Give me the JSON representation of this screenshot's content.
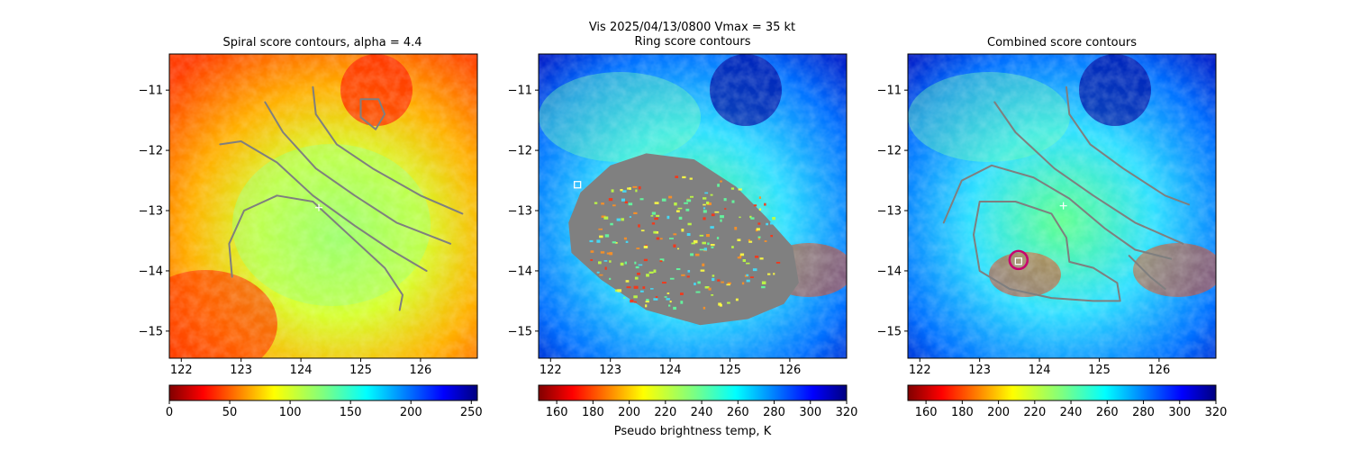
{
  "figure": {
    "suptitle_line1": "Vis  2025/04/13/0800    Vmax = 35 kt",
    "suptitle_line2": "Ring score contours",
    "colorbar_label": "Pseudo brightness temp, K"
  },
  "colors": {
    "axis": "#000000",
    "contour": "#7f7f7f",
    "ring_mask": "#808080",
    "center_marker": "#ffffff",
    "circle": "#c8006e"
  },
  "chart_data": [
    {
      "type": "heatmap",
      "title": "Spiral score contours, alpha =  4.4",
      "xlabel": "",
      "ylabel": "",
      "xlim": [
        121.8,
        126.95
      ],
      "ylim": [
        -15.45,
        -10.4
      ],
      "xticks": [
        122,
        123,
        124,
        125,
        126
      ],
      "yticks": [
        -11,
        -12,
        -13,
        -14,
        -15
      ],
      "xtick_labels": [
        "122",
        "123",
        "124",
        "125",
        "126"
      ],
      "ytick_labels": [
        "−11",
        "−12",
        "−13",
        "−14",
        "−15"
      ],
      "colormap": "jet_r",
      "colorbar": {
        "min": 0,
        "max": 255,
        "ticks": [
          0,
          50,
          100,
          150,
          200,
          250
        ],
        "tick_labels": [
          "0",
          "50",
          "100",
          "150",
          "200",
          "250"
        ]
      },
      "center_marker": [
        124.3,
        -12.95
      ],
      "contours": [
        [
          [
            124.2,
            -10.95
          ],
          [
            124.25,
            -11.4
          ],
          [
            124.6,
            -11.9
          ],
          [
            125.2,
            -12.3
          ],
          [
            126.0,
            -12.75
          ],
          [
            126.7,
            -13.05
          ]
        ],
        [
          [
            123.4,
            -11.2
          ],
          [
            123.7,
            -11.7
          ],
          [
            124.25,
            -12.3
          ],
          [
            124.9,
            -12.75
          ],
          [
            125.6,
            -13.2
          ],
          [
            126.5,
            -13.55
          ]
        ],
        [
          [
            122.65,
            -11.9
          ],
          [
            123.0,
            -11.85
          ],
          [
            123.6,
            -12.2
          ],
          [
            124.2,
            -12.75
          ],
          [
            124.9,
            -13.25
          ],
          [
            125.5,
            -13.65
          ],
          [
            126.1,
            -14.0
          ]
        ],
        [
          [
            122.85,
            -14.1
          ],
          [
            122.8,
            -13.55
          ],
          [
            123.05,
            -13.0
          ],
          [
            123.6,
            -12.75
          ],
          [
            124.2,
            -12.85
          ],
          [
            124.8,
            -13.4
          ],
          [
            125.4,
            -13.95
          ],
          [
            125.7,
            -14.4
          ],
          [
            125.65,
            -14.65
          ]
        ],
        [
          [
            125.0,
            -11.15
          ],
          [
            125.3,
            -11.15
          ],
          [
            125.4,
            -11.4
          ],
          [
            125.25,
            -11.65
          ],
          [
            125.0,
            -11.45
          ],
          [
            125.0,
            -11.15
          ]
        ]
      ]
    },
    {
      "type": "heatmap",
      "title": "Ring score contours",
      "xlabel": "",
      "ylabel": "",
      "xlim": [
        121.8,
        126.95
      ],
      "ylim": [
        -15.45,
        -10.4
      ],
      "xticks": [
        122,
        123,
        124,
        125,
        126
      ],
      "yticks": [
        -11,
        -12,
        -13,
        -14,
        -15
      ],
      "xtick_labels": [
        "122",
        "123",
        "124",
        "125",
        "126"
      ],
      "ytick_labels": [
        "−11",
        "−12",
        "−13",
        "−14",
        "−15"
      ],
      "colormap": "jet_r",
      "colorbar": {
        "min": 150,
        "max": 320,
        "ticks": [
          160,
          180,
          200,
          220,
          240,
          260,
          280,
          300,
          320
        ],
        "tick_labels": [
          "160",
          "180",
          "200",
          "220",
          "240",
          "260",
          "280",
          "300",
          "320"
        ]
      },
      "square_marker": [
        122.45,
        -12.57
      ],
      "ring_region": [
        [
          122.3,
          -13.2
        ],
        [
          122.5,
          -12.7
        ],
        [
          123.0,
          -12.25
        ],
        [
          123.6,
          -12.05
        ],
        [
          124.4,
          -12.15
        ],
        [
          125.1,
          -12.6
        ],
        [
          125.6,
          -13.1
        ],
        [
          126.05,
          -13.6
        ],
        [
          126.15,
          -14.2
        ],
        [
          125.9,
          -14.55
        ],
        [
          125.3,
          -14.8
        ],
        [
          124.5,
          -14.9
        ],
        [
          123.6,
          -14.65
        ],
        [
          122.85,
          -14.15
        ],
        [
          122.35,
          -13.7
        ]
      ]
    },
    {
      "type": "heatmap",
      "title": "Combined score contours",
      "xlabel": "",
      "ylabel": "",
      "xlim": [
        121.8,
        126.95
      ],
      "ylim": [
        -15.45,
        -10.4
      ],
      "xticks": [
        122,
        123,
        124,
        125,
        126
      ],
      "yticks": [
        -11,
        -12,
        -13,
        -14,
        -15
      ],
      "xtick_labels": [
        "122",
        "123",
        "124",
        "125",
        "126"
      ],
      "ytick_labels": [
        "−11",
        "−12",
        "−13",
        "−14",
        "−15"
      ],
      "colormap": "jet_r",
      "colorbar": {
        "min": 150,
        "max": 320,
        "ticks": [
          160,
          180,
          200,
          220,
          240,
          260,
          280,
          300,
          320
        ],
        "tick_labels": [
          "160",
          "180",
          "200",
          "220",
          "240",
          "260",
          "280",
          "300",
          "320"
        ]
      },
      "center_marker": [
        124.4,
        -12.92
      ],
      "circle_center": [
        123.65,
        -13.82
      ],
      "square_marker": [
        123.65,
        -13.84
      ],
      "contours": [
        [
          [
            124.45,
            -10.95
          ],
          [
            124.5,
            -11.4
          ],
          [
            124.85,
            -11.9
          ],
          [
            125.4,
            -12.3
          ],
          [
            126.1,
            -12.75
          ],
          [
            126.5,
            -12.9
          ]
        ],
        [
          [
            123.25,
            -11.2
          ],
          [
            123.6,
            -11.7
          ],
          [
            124.25,
            -12.3
          ],
          [
            124.9,
            -12.75
          ],
          [
            125.6,
            -13.2
          ],
          [
            126.4,
            -13.55
          ]
        ],
        [
          [
            122.4,
            -13.2
          ],
          [
            122.7,
            -12.5
          ],
          [
            123.2,
            -12.25
          ],
          [
            123.9,
            -12.45
          ],
          [
            124.5,
            -12.8
          ],
          [
            125.1,
            -13.3
          ],
          [
            125.6,
            -13.65
          ],
          [
            126.2,
            -13.8
          ]
        ],
        [
          [
            123.0,
            -12.85
          ],
          [
            123.6,
            -12.85
          ],
          [
            124.2,
            -13.05
          ],
          [
            124.45,
            -13.45
          ],
          [
            124.5,
            -13.85
          ],
          [
            124.9,
            -13.95
          ],
          [
            125.3,
            -14.2
          ],
          [
            125.35,
            -14.5
          ],
          [
            124.9,
            -14.5
          ],
          [
            124.2,
            -14.45
          ],
          [
            123.5,
            -14.3
          ],
          [
            123.0,
            -14.0
          ],
          [
            122.9,
            -13.4
          ],
          [
            123.0,
            -12.85
          ]
        ],
        [
          [
            125.5,
            -13.75
          ],
          [
            125.85,
            -14.1
          ],
          [
            126.1,
            -14.3
          ]
        ]
      ]
    }
  ]
}
